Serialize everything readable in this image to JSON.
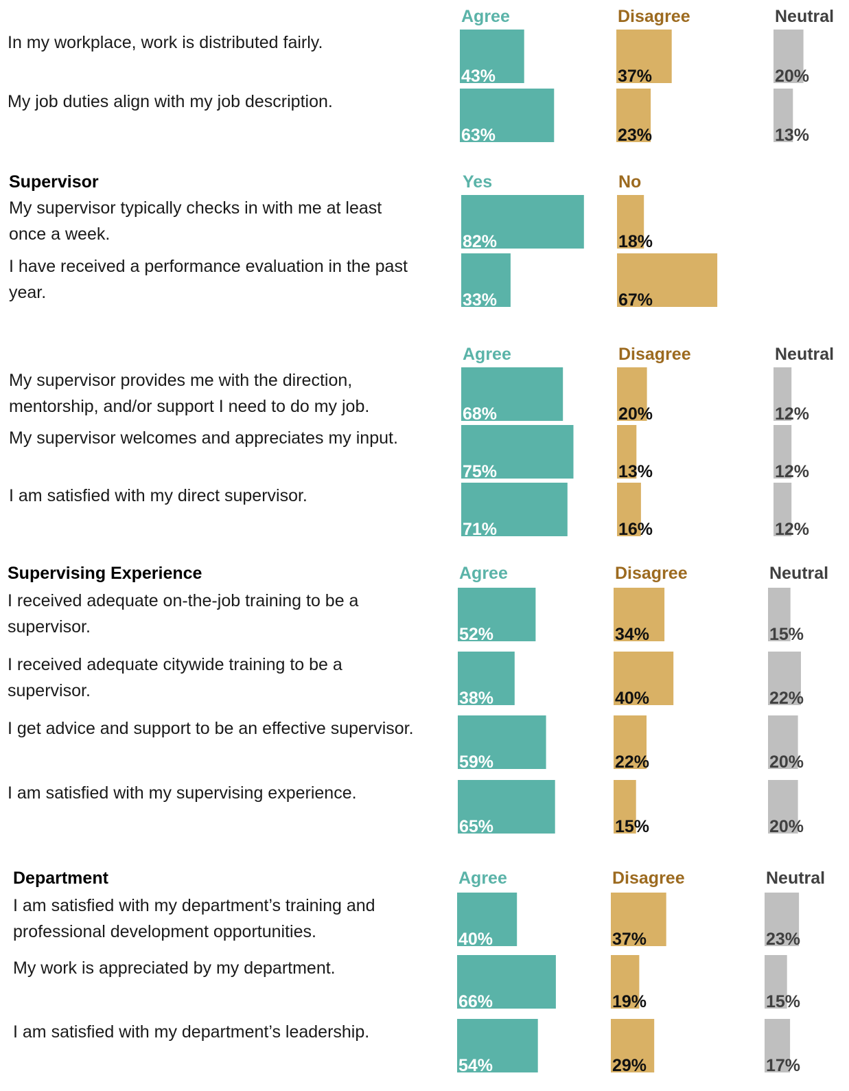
{
  "colors": {
    "agree": "#5ab3a8",
    "disagree": "#d9b165",
    "neutral": "#bfbfbf",
    "agree_header": "#5ab3a8",
    "disagree_header": "#9c6a1f",
    "neutral_header": "#404040"
  },
  "chart_data": {
    "type": "bar",
    "orientation": "horizontal",
    "value_unit": "%",
    "sections": [
      {
        "title": "",
        "columns": [
          "Agree",
          "Disagree",
          "Neutral"
        ],
        "questions": [
          {
            "lines": [
              "In my workplace, work is distributed fairly."
            ],
            "values": [
              43,
              37,
              20
            ]
          },
          {
            "lines": [
              "My job duties align with my job description."
            ],
            "values": [
              63,
              23,
              13
            ]
          }
        ]
      },
      {
        "title": "Supervisor",
        "columns": [
          "Yes",
          "No"
        ],
        "questions": [
          {
            "lines": [
              "My supervisor typically checks in with me at least",
              "once a week."
            ],
            "values": [
              82,
              18
            ]
          },
          {
            "lines": [
              "I have received a performance evaluation in the past",
              "year."
            ],
            "values": [
              33,
              67
            ]
          }
        ]
      },
      {
        "title": "",
        "columns": [
          "Agree",
          "Disagree",
          "Neutral"
        ],
        "questions": [
          {
            "lines": [
              "My supervisor provides me with the direction,",
              "mentorship, and/or support I need to do my job."
            ],
            "values": [
              68,
              20,
              12
            ]
          },
          {
            "lines": [
              "My supervisor welcomes and appreciates my input."
            ],
            "values": [
              75,
              13,
              12
            ]
          },
          {
            "lines": [
              "I am satisfied with my direct supervisor."
            ],
            "values": [
              71,
              16,
              12
            ]
          }
        ]
      },
      {
        "title": "Supervising Experience",
        "columns": [
          "Agree",
          "Disagree",
          "Neutral"
        ],
        "questions": [
          {
            "lines": [
              "I received adequate on-the-job training to be a",
              "supervisor."
            ],
            "values": [
              52,
              34,
              15
            ]
          },
          {
            "lines": [
              "I received adequate citywide training to be a",
              "supervisor."
            ],
            "values": [
              38,
              40,
              22
            ]
          },
          {
            "lines": [
              "I get advice and support to be an effective supervisor."
            ],
            "values": [
              59,
              22,
              20
            ]
          },
          {
            "lines": [
              "I am satisfied with my supervising experience."
            ],
            "values": [
              65,
              15,
              20
            ]
          }
        ]
      },
      {
        "title": "Department",
        "columns": [
          "Agree",
          "Disagree",
          "Neutral"
        ],
        "questions": [
          {
            "lines": [
              "I am satisfied with my department’s training and",
              "professional development opportunities."
            ],
            "values": [
              40,
              37,
              23
            ]
          },
          {
            "lines": [
              "My work is appreciated by my department."
            ],
            "values": [
              66,
              19,
              15
            ]
          },
          {
            "lines": [
              "I am satisfied with my department’s leadership."
            ],
            "values": [
              54,
              29,
              17
            ]
          }
        ]
      }
    ]
  }
}
